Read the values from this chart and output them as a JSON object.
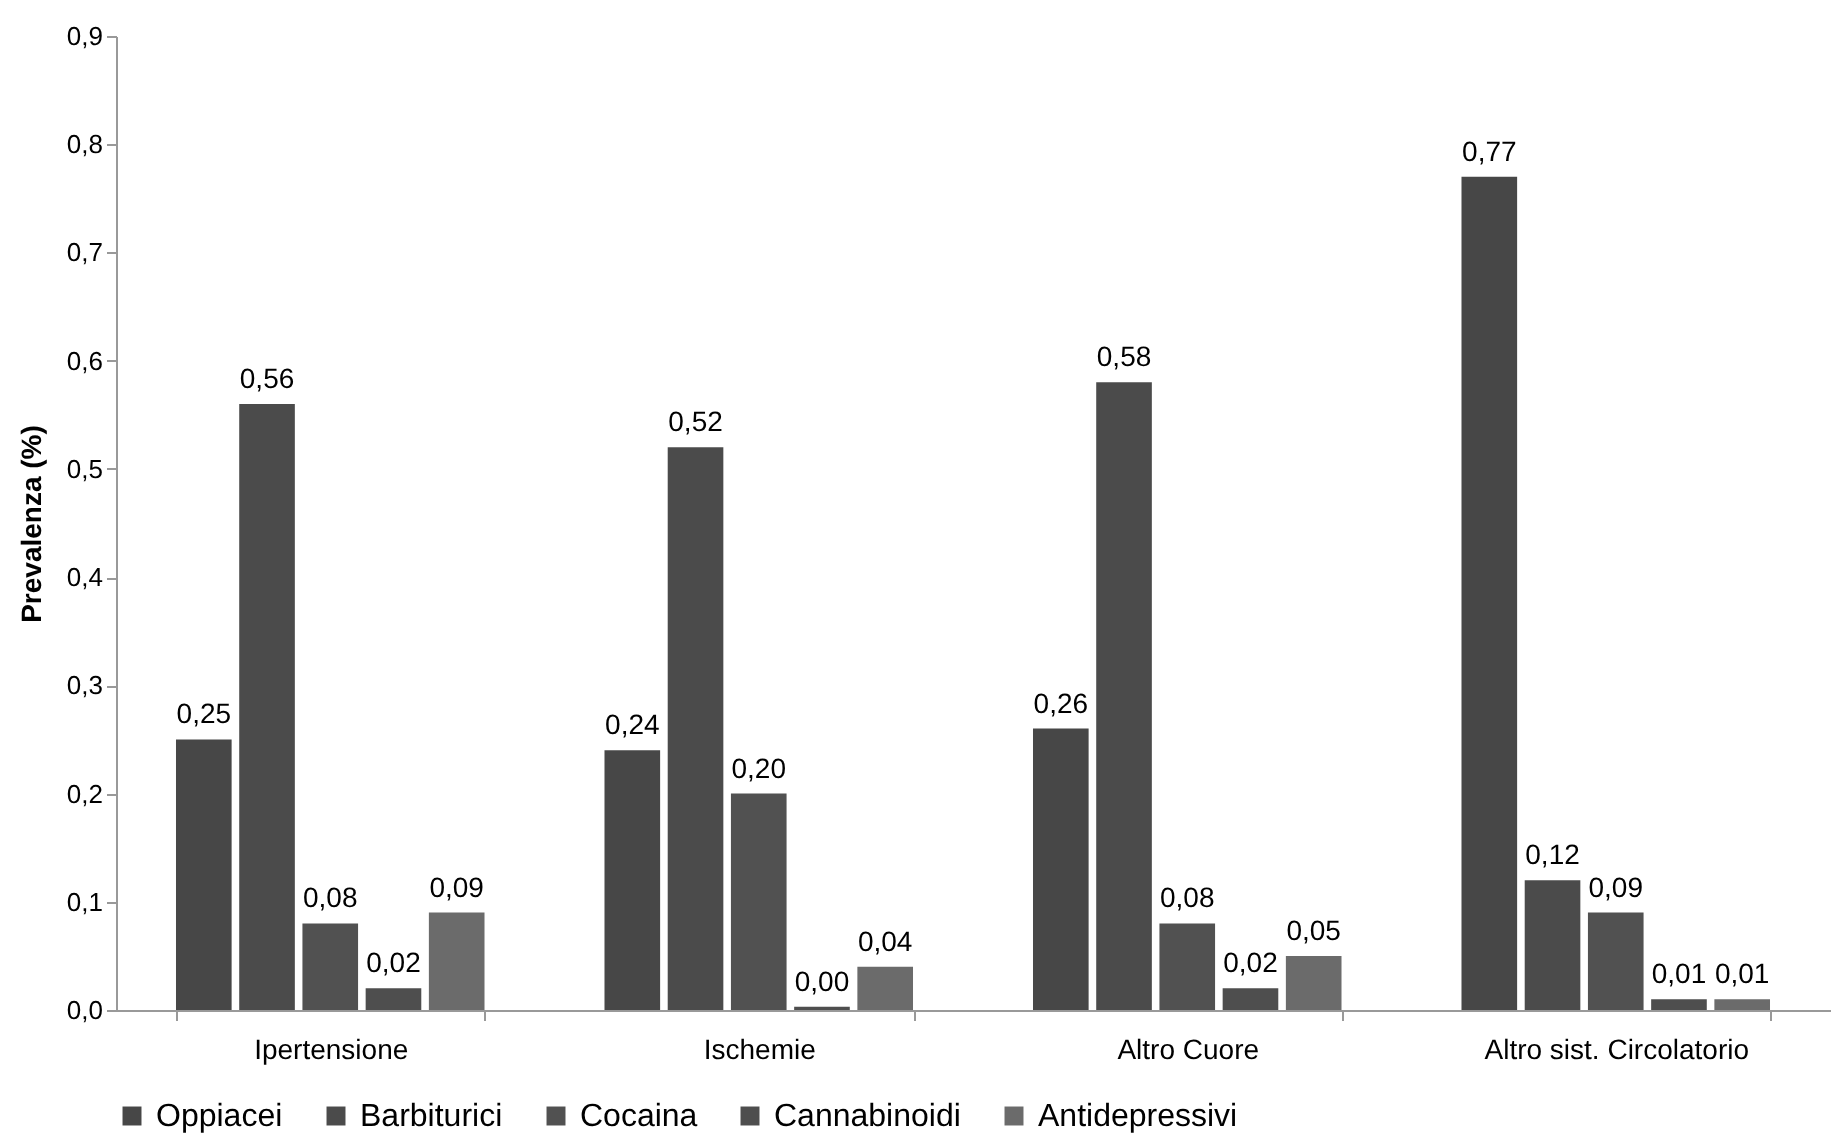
{
  "chart_data": {
    "type": "bar",
    "ylabel": "Prevalenza (%)",
    "categories": [
      "Ipertensione",
      "Ischemie",
      "Altro Cuore",
      "Altro sist. Circolatorio"
    ],
    "series": [
      {
        "name": "Oppiacei",
        "color": "#474747",
        "values": [
          0.25,
          0.24,
          0.26,
          0.77
        ],
        "value_labels": [
          "0,25",
          "0,24",
          "0,26",
          "0,77"
        ]
      },
      {
        "name": "Barbiturici",
        "color": "#4b4b4b",
        "values": [
          0.56,
          0.52,
          0.58,
          0.12
        ],
        "value_labels": [
          "0,56",
          "0,52",
          "0,58",
          "0,12"
        ]
      },
      {
        "name": "Cocaina",
        "color": "#515151",
        "values": [
          0.08,
          0.2,
          0.08,
          0.09
        ],
        "value_labels": [
          "0,08",
          "0,20",
          "0,08",
          "0,09"
        ]
      },
      {
        "name": "Cannabinoidi",
        "color": "#4e4e4e",
        "values": [
          0.02,
          0.003,
          0.02,
          0.01
        ],
        "value_labels": [
          "0,02",
          "0,00",
          "0,02",
          "0,01"
        ]
      },
      {
        "name": "Antidepressivi",
        "color": "#6b6b6b",
        "values": [
          0.09,
          0.04,
          0.05,
          0.01
        ],
        "value_labels": [
          "0,09",
          "0,04",
          "0,05",
          "0,01"
        ]
      }
    ],
    "ylim": [
      0,
      0.9
    ],
    "yticks": [
      {
        "value": 0,
        "label": "0,0"
      },
      {
        "value": 0.1,
        "label": "0,1"
      },
      {
        "value": 0.2,
        "label": "0,2"
      },
      {
        "value": 0.3,
        "label": "0,3"
      },
      {
        "value": 0.4,
        "label": "0,4"
      },
      {
        "value": 0.5,
        "label": "0,5"
      },
      {
        "value": 0.6,
        "label": "0,6"
      },
      {
        "value": 0.7,
        "label": "0,7"
      },
      {
        "value": 0.8,
        "label": "0,8"
      },
      {
        "value": 0.9,
        "label": "0,9"
      }
    ],
    "grid": false,
    "legend": "bottom"
  }
}
